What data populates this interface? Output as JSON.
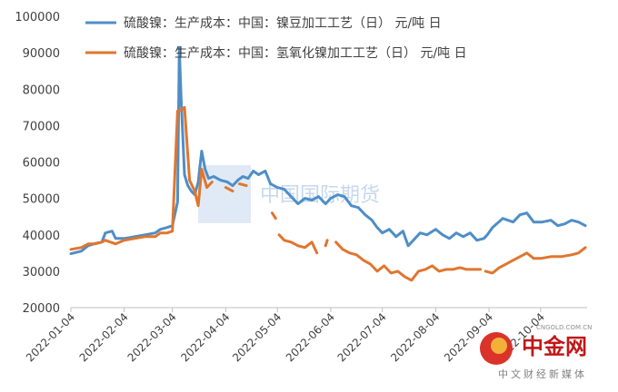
{
  "chart_data": {
    "type": "line",
    "title": "",
    "xlabel": "",
    "ylabel": "",
    "ylim": [
      20000,
      100000
    ],
    "y_ticks": [
      "100000",
      "90000",
      "80000",
      "70000",
      "60000",
      "50000",
      "40000",
      "30000",
      "20000"
    ],
    "x_ticks": [
      "2022-01-04",
      "2022-02-04",
      "2022-03-04",
      "2022-04-04",
      "2022-05-04",
      "2022-06-04",
      "2022-07-04",
      "2022-08-04",
      "2022-09-04",
      "2022-10-04"
    ],
    "legend_position": "top",
    "series": [
      {
        "name": "硫酸镍：生产成本：中国：镍豆加工工艺（日） 元/吨 日",
        "color": "#4f8ec6",
        "points": [
          [
            "2022-01-04",
            34800
          ],
          [
            "2022-01-10",
            35500
          ],
          [
            "2022-01-14",
            37000
          ],
          [
            "2022-01-18",
            37600
          ],
          [
            "2022-01-22",
            38000
          ],
          [
            "2022-01-24",
            40500
          ],
          [
            "2022-01-28",
            41000
          ],
          [
            "2022-01-30",
            39000
          ],
          [
            "2022-02-04",
            39000
          ],
          [
            "2022-02-10",
            39500
          ],
          [
            "2022-02-16",
            40000
          ],
          [
            "2022-02-22",
            40500
          ],
          [
            "2022-02-25",
            41500
          ],
          [
            "2022-03-01",
            42000
          ],
          [
            "2022-03-04",
            42500
          ],
          [
            "2022-03-07",
            49000
          ],
          [
            "2022-03-08",
            91500
          ],
          [
            "2022-03-09",
            78000
          ],
          [
            "2022-03-11",
            56500
          ],
          [
            "2022-03-13",
            53500
          ],
          [
            "2022-03-15",
            52000
          ],
          [
            "2022-03-17",
            51000
          ],
          [
            "2022-03-19",
            54500
          ],
          [
            "2022-03-21",
            63000
          ],
          [
            "2022-03-23",
            58000
          ],
          [
            "2022-03-25",
            55500
          ],
          [
            "2022-03-28",
            56000
          ],
          [
            "2022-04-01",
            55000
          ],
          [
            "2022-04-05",
            54500
          ],
          [
            "2022-04-08",
            53500
          ],
          [
            "2022-04-11",
            55000
          ],
          [
            "2022-04-14",
            56000
          ],
          [
            "2022-04-17",
            55500
          ],
          [
            "2022-04-20",
            57500
          ],
          [
            "2022-04-23",
            56500
          ],
          [
            "2022-04-27",
            57500
          ],
          [
            "2022-04-30",
            54000
          ],
          [
            "2022-05-04",
            53000
          ],
          [
            "2022-05-08",
            52500
          ],
          [
            "2022-05-12",
            50500
          ],
          [
            "2022-05-16",
            48500
          ],
          [
            "2022-05-20",
            50000
          ],
          [
            "2022-05-24",
            49500
          ],
          [
            "2022-05-28",
            50500
          ],
          [
            "2022-06-01",
            48500
          ],
          [
            "2022-06-04",
            50000
          ],
          [
            "2022-06-08",
            51000
          ],
          [
            "2022-06-12",
            50500
          ],
          [
            "2022-06-16",
            48000
          ],
          [
            "2022-06-20",
            47500
          ],
          [
            "2022-06-24",
            45500
          ],
          [
            "2022-06-28",
            44000
          ],
          [
            "2022-07-01",
            42000
          ],
          [
            "2022-07-04",
            40500
          ],
          [
            "2022-07-08",
            41500
          ],
          [
            "2022-07-12",
            39500
          ],
          [
            "2022-07-16",
            41000
          ],
          [
            "2022-07-19",
            37000
          ],
          [
            "2022-07-22",
            38500
          ],
          [
            "2022-07-26",
            40500
          ],
          [
            "2022-07-30",
            40000
          ],
          [
            "2022-08-04",
            41500
          ],
          [
            "2022-08-08",
            40000
          ],
          [
            "2022-08-12",
            39000
          ],
          [
            "2022-08-16",
            40500
          ],
          [
            "2022-08-20",
            39500
          ],
          [
            "2022-08-24",
            40500
          ],
          [
            "2022-08-28",
            38500
          ],
          [
            "2022-09-01",
            39000
          ],
          [
            "2022-09-03",
            40000
          ],
          [
            "2022-09-06",
            42000
          ],
          [
            "2022-09-12",
            44500
          ],
          [
            "2022-09-18",
            43500
          ],
          [
            "2022-09-22",
            45500
          ],
          [
            "2022-09-26",
            46000
          ],
          [
            "2022-09-30",
            43500
          ],
          [
            "2022-10-05",
            43500
          ],
          [
            "2022-10-10",
            44000
          ],
          [
            "2022-10-14",
            42500
          ],
          [
            "2022-10-18",
            43000
          ],
          [
            "2022-10-22",
            44000
          ],
          [
            "2022-10-26",
            43500
          ],
          [
            "2022-10-30",
            42500
          ]
        ]
      },
      {
        "name": "硫酸镍：生产成本：中国：氢氧化镍加工工艺（日） 元/吨 日",
        "color": "#e0762f",
        "points": [
          [
            "2022-01-04",
            36000
          ],
          [
            "2022-01-10",
            36500
          ],
          [
            "2022-01-14",
            37500
          ],
          [
            "2022-01-18",
            37500
          ],
          [
            "2022-01-22",
            38000
          ],
          [
            "2022-01-24",
            38500
          ],
          [
            "2022-01-30",
            37500
          ],
          [
            "2022-02-04",
            38500
          ],
          [
            "2022-02-10",
            39000
          ],
          [
            "2022-02-16",
            39500
          ],
          [
            "2022-02-22",
            39500
          ],
          [
            "2022-02-25",
            40500
          ],
          [
            "2022-03-01",
            40500
          ],
          [
            "2022-03-04",
            41000
          ],
          [
            "2022-03-07",
            74000
          ],
          [
            "2022-03-10",
            74500
          ],
          [
            "2022-03-11",
            75000
          ],
          [
            "2022-03-14",
            55000
          ],
          [
            "2022-03-17",
            52000
          ],
          [
            "2022-03-19",
            48000
          ],
          [
            "2022-03-21",
            58000
          ],
          [
            "2022-03-24",
            53000
          ],
          [
            "2022-03-27",
            54500
          ],
          [
            null,
            null
          ],
          [
            "2022-04-04",
            53000
          ],
          [
            "2022-04-08",
            52000
          ],
          [
            null,
            null
          ],
          [
            "2022-04-12",
            54000
          ],
          [
            "2022-04-16",
            53500
          ],
          [
            null,
            null
          ],
          [
            "2022-05-01",
            46000
          ],
          [
            "2022-05-03",
            44500
          ],
          [
            null,
            null
          ],
          [
            "2022-05-05",
            40000
          ],
          [
            "2022-05-08",
            38500
          ],
          [
            "2022-05-12",
            38000
          ],
          [
            "2022-05-16",
            37000
          ],
          [
            "2022-05-20",
            36500
          ],
          [
            "2022-05-24",
            38000
          ],
          [
            "2022-05-27",
            35000
          ],
          [
            null,
            null
          ],
          [
            "2022-06-01",
            37000
          ],
          [
            "2022-06-02",
            38500
          ],
          [
            null,
            null
          ],
          [
            "2022-06-07",
            38000
          ],
          [
            "2022-06-11",
            36000
          ],
          [
            "2022-06-15",
            35000
          ],
          [
            "2022-06-19",
            34500
          ],
          [
            "2022-06-23",
            33000
          ],
          [
            "2022-06-27",
            32000
          ],
          [
            "2022-07-01",
            30000
          ],
          [
            "2022-07-05",
            31500
          ],
          [
            "2022-07-09",
            29500
          ],
          [
            "2022-07-13",
            30000
          ],
          [
            "2022-07-17",
            28500
          ],
          [
            "2022-07-21",
            27500
          ],
          [
            "2022-07-25",
            30000
          ],
          [
            "2022-07-29",
            30500
          ],
          [
            "2022-08-02",
            31500
          ],
          [
            "2022-08-06",
            30000
          ],
          [
            "2022-08-10",
            30500
          ],
          [
            "2022-08-14",
            30500
          ],
          [
            "2022-08-18",
            31000
          ],
          [
            "2022-08-22",
            30500
          ],
          [
            "2022-08-26",
            30500
          ],
          [
            "2022-08-30",
            30500
          ],
          [
            null,
            null
          ],
          [
            "2022-09-02",
            30000
          ],
          [
            "2022-09-06",
            29500
          ],
          [
            "2022-09-10",
            31000
          ],
          [
            "2022-09-14",
            32000
          ],
          [
            "2022-09-18",
            33000
          ],
          [
            "2022-09-22",
            34000
          ],
          [
            "2022-09-26",
            35000
          ],
          [
            "2022-09-30",
            33500
          ],
          [
            "2022-10-04",
            33500
          ],
          [
            "2022-10-10",
            34000
          ],
          [
            "2022-10-16",
            34000
          ],
          [
            "2022-10-22",
            34500
          ],
          [
            "2022-10-26",
            35000
          ],
          [
            "2022-10-30",
            36500
          ]
        ]
      }
    ]
  },
  "watermark": {
    "text": "中国国际期货"
  },
  "logo": {
    "main": "中金网",
    "sub": "中文财经新媒体",
    "url": "CNGOLD.COM.CN"
  }
}
